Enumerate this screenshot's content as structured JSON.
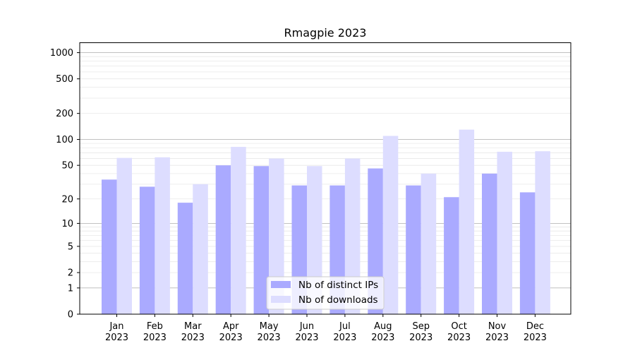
{
  "chart_data": {
    "type": "bar",
    "title": "Rmagpie 2023",
    "xlabel": "",
    "ylabel": "",
    "yscale": "symlog",
    "yticks": [
      0,
      1,
      2,
      5,
      10,
      20,
      50,
      100,
      200,
      500,
      1000
    ],
    "ylim": [
      0,
      1300
    ],
    "categories": [
      {
        "month": "Jan",
        "year": "2023"
      },
      {
        "month": "Feb",
        "year": "2023"
      },
      {
        "month": "Mar",
        "year": "2023"
      },
      {
        "month": "Apr",
        "year": "2023"
      },
      {
        "month": "May",
        "year": "2023"
      },
      {
        "month": "Jun",
        "year": "2023"
      },
      {
        "month": "Jul",
        "year": "2023"
      },
      {
        "month": "Aug",
        "year": "2023"
      },
      {
        "month": "Sep",
        "year": "2023"
      },
      {
        "month": "Oct",
        "year": "2023"
      },
      {
        "month": "Nov",
        "year": "2023"
      },
      {
        "month": "Dec",
        "year": "2023"
      }
    ],
    "series": [
      {
        "name": "Nb of distinct IPs",
        "color": "#aaaaff",
        "values": [
          34,
          28,
          18,
          50,
          49,
          29,
          29,
          46,
          29,
          21,
          40,
          24
        ]
      },
      {
        "name": "Nb of downloads",
        "color": "#ddddff",
        "values": [
          61,
          62,
          30,
          82,
          60,
          49,
          60,
          110,
          40,
          130,
          72,
          73
        ]
      }
    ],
    "grid": true,
    "legend_position": "bottom-center"
  }
}
